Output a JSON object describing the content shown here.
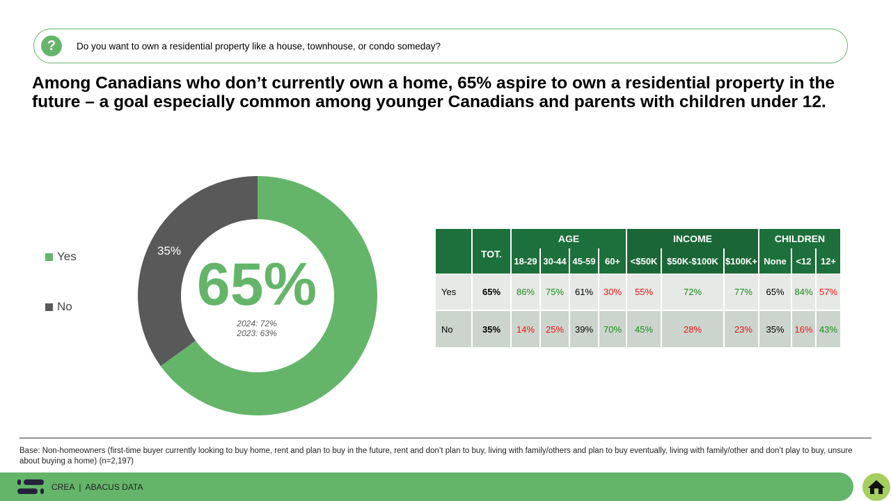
{
  "question": "Do you want to own a residential property like a house, townhouse, or condo someday?",
  "headline": "Among Canadians who don’t currently own a home, 65% aspire to own a residential property in the future – a goal especially common among younger Canadians and parents with children under 12.",
  "chart_data": {
    "type": "pie",
    "donut": true,
    "categories": [
      "Yes",
      "No"
    ],
    "values": [
      65,
      35
    ],
    "labels": [
      "65%",
      "35%"
    ],
    "colors": [
      "#64b56a",
      "#595959"
    ],
    "center_label": "65%",
    "history": [
      "2024: 72%",
      "2023: 63%"
    ],
    "legend": "left"
  },
  "table": {
    "tot_label": "TOT.",
    "groups": [
      {
        "label": "AGE",
        "cols": [
          "18-29",
          "30-44",
          "45-59",
          "60+"
        ]
      },
      {
        "label": "INCOME",
        "cols": [
          "<$50K",
          "$50K-$100K",
          "$100K+"
        ]
      },
      {
        "label": "CHILDREN",
        "cols": [
          "None",
          "<12",
          "12+"
        ]
      }
    ],
    "rows": [
      {
        "label": "Yes",
        "tot": "65%",
        "cells": [
          {
            "v": "86%",
            "c": "g"
          },
          {
            "v": "75%",
            "c": "g"
          },
          {
            "v": "61%",
            "c": ""
          },
          {
            "v": "30%",
            "c": "r"
          },
          {
            "v": "55%",
            "c": "r"
          },
          {
            "v": "72%",
            "c": "g"
          },
          {
            "v": "77%",
            "c": "g"
          },
          {
            "v": "65%",
            "c": ""
          },
          {
            "v": "84%",
            "c": "g"
          },
          {
            "v": "57%",
            "c": "r"
          }
        ]
      },
      {
        "label": "No",
        "tot": "35%",
        "cells": [
          {
            "v": "14%",
            "c": "r"
          },
          {
            "v": "25%",
            "c": "r"
          },
          {
            "v": "39%",
            "c": ""
          },
          {
            "v": "70%",
            "c": "g"
          },
          {
            "v": "45%",
            "c": "g"
          },
          {
            "v": "28%",
            "c": "r"
          },
          {
            "v": "23%",
            "c": "r"
          },
          {
            "v": "35%",
            "c": ""
          },
          {
            "v": "16%",
            "c": "r"
          },
          {
            "v": "43%",
            "c": "g"
          }
        ]
      }
    ]
  },
  "base_note": "Base: Non-homeowners (first-time buyer currently looking to buy home, rent and plan to buy in the future, rent and don’t plan to buy, living with family/others and plan to buy eventually, living with family/other and don’t play to buy, unsure about buying a home) (n=2,197)",
  "footer": {
    "brand": "CREA  |  ABACUS DATA"
  }
}
